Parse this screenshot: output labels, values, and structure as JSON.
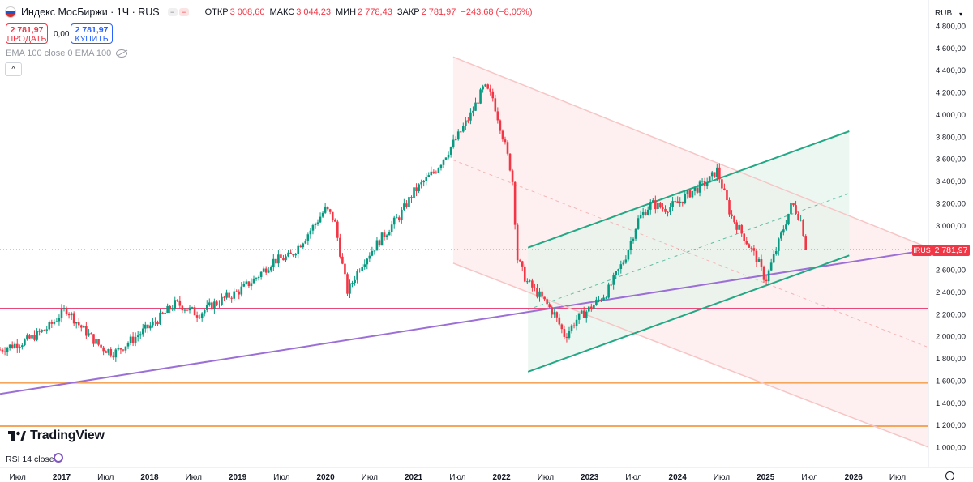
{
  "header": {
    "title": "Индекс МосБиржи · 1Ч · RUS",
    "toggle_a": "−",
    "toggle_b": "−",
    "ohlc": [
      {
        "k": "ОТКР",
        "v": "3 008,60"
      },
      {
        "k": "МАКС",
        "v": "3 044,23"
      },
      {
        "k": "МИН",
        "v": "2 778,43"
      },
      {
        "k": "ЗАКР",
        "v": "2 781,97"
      }
    ],
    "change": "−243,68 (−8,05%)"
  },
  "trade": {
    "sell_price": "2 781,97",
    "sell_label": "ПРОДАТЬ",
    "spread": "0,00",
    "buy_price": "2 781,97",
    "buy_label": "КУПИТЬ"
  },
  "indicator_label": "EMA 100 close 0 EMA 100",
  "collapse_icon": "^",
  "logo_text": "TradingView",
  "rsi_label": "RSI 14 close",
  "currency": "RUB",
  "price_tag": "2 781,97",
  "symbol_tag": "IRUS",
  "colors": {
    "up": "#089981",
    "down": "#f23645",
    "channel_pink": "#f7c5c5",
    "channel_green": "#22a884",
    "trend_purple": "#9c6fd6",
    "level_magenta": "#e8487a",
    "level_orange": "#f5a65b"
  },
  "chart_data": {
    "type": "candlestick",
    "y_axis": {
      "min": 1000,
      "max": 4800,
      "ticks": [
        1000,
        1200,
        1400,
        1600,
        1800,
        2000,
        2200,
        2400,
        2600,
        2800,
        3000,
        3200,
        3400,
        3600,
        3800,
        4000,
        4200,
        4400,
        4600,
        4800
      ],
      "tick_labels": [
        "1 000,00",
        "1 200,00",
        "1 400,00",
        "1 600,00",
        "1 800,00",
        "2 000,00",
        "2 200,00",
        "2 400,00",
        "2 600,00",
        "2 800,00",
        "3 000,00",
        "3 200,00",
        "3 400,00",
        "3 600,00",
        "3 800,00",
        "4 000,00",
        "4 200,00",
        "4 400,00",
        "4 600,00",
        "4 800,00"
      ]
    },
    "x_axis": {
      "range": [
        2016.3,
        2026.85
      ],
      "ticks": [
        {
          "t": 2016.5,
          "label": "Июл",
          "year": false
        },
        {
          "t": 2017.0,
          "label": "2017",
          "year": true
        },
        {
          "t": 2017.5,
          "label": "Июл",
          "year": false
        },
        {
          "t": 2018.0,
          "label": "2018",
          "year": true
        },
        {
          "t": 2018.5,
          "label": "Июл",
          "year": false
        },
        {
          "t": 2019.0,
          "label": "2019",
          "year": true
        },
        {
          "t": 2019.5,
          "label": "Июл",
          "year": false
        },
        {
          "t": 2020.0,
          "label": "2020",
          "year": true
        },
        {
          "t": 2020.5,
          "label": "Июл",
          "year": false
        },
        {
          "t": 2021.0,
          "label": "2021",
          "year": true
        },
        {
          "t": 2021.5,
          "label": "Июл",
          "year": false
        },
        {
          "t": 2022.0,
          "label": "2022",
          "year": true
        },
        {
          "t": 2022.5,
          "label": "Июл",
          "year": false
        },
        {
          "t": 2023.0,
          "label": "2023",
          "year": true
        },
        {
          "t": 2023.5,
          "label": "Июл",
          "year": false
        },
        {
          "t": 2024.0,
          "label": "2024",
          "year": true
        },
        {
          "t": 2024.5,
          "label": "Июл",
          "year": false
        },
        {
          "t": 2025.0,
          "label": "2025",
          "year": true
        },
        {
          "t": 2025.5,
          "label": "Июл",
          "year": false
        },
        {
          "t": 2026.0,
          "label": "2026",
          "year": true
        },
        {
          "t": 2026.5,
          "label": "Июл",
          "year": false
        }
      ]
    },
    "price_path": [
      [
        2016.3,
        1880
      ],
      [
        2016.6,
        1960
      ],
      [
        2016.85,
        2080
      ],
      [
        2017.05,
        2250
      ],
      [
        2017.2,
        2100
      ],
      [
        2017.45,
        1900
      ],
      [
        2017.6,
        1850
      ],
      [
        2017.85,
        2000
      ],
      [
        2018.05,
        2120
      ],
      [
        2018.3,
        2300
      ],
      [
        2018.55,
        2200
      ],
      [
        2018.75,
        2300
      ],
      [
        2019.0,
        2400
      ],
      [
        2019.2,
        2520
      ],
      [
        2019.4,
        2680
      ],
      [
        2019.6,
        2720
      ],
      [
        2019.85,
        2980
      ],
      [
        2020.0,
        3150
      ],
      [
        2020.1,
        3050
      ],
      [
        2020.2,
        2600
      ],
      [
        2020.25,
        2400
      ],
      [
        2020.4,
        2650
      ],
      [
        2020.6,
        2850
      ],
      [
        2020.85,
        3100
      ],
      [
        2021.0,
        3300
      ],
      [
        2021.25,
        3500
      ],
      [
        2021.5,
        3800
      ],
      [
        2021.65,
        4000
      ],
      [
        2021.8,
        4250
      ],
      [
        2021.9,
        4150
      ],
      [
        2022.0,
        3850
      ],
      [
        2022.12,
        3450
      ],
      [
        2022.18,
        2700
      ],
      [
        2022.28,
        2500
      ],
      [
        2022.45,
        2350
      ],
      [
        2022.6,
        2200
      ],
      [
        2022.72,
        2000
      ],
      [
        2022.85,
        2150
      ],
      [
        2023.0,
        2250
      ],
      [
        2023.2,
        2400
      ],
      [
        2023.4,
        2700
      ],
      [
        2023.55,
        3050
      ],
      [
        2023.7,
        3200
      ],
      [
        2023.85,
        3150
      ],
      [
        2024.0,
        3200
      ],
      [
        2024.15,
        3300
      ],
      [
        2024.35,
        3400
      ],
      [
        2024.45,
        3500
      ],
      [
        2024.6,
        3100
      ],
      [
        2024.75,
        2900
      ],
      [
        2024.9,
        2700
      ],
      [
        2025.0,
        2500
      ],
      [
        2025.15,
        2850
      ],
      [
        2025.3,
        3200
      ],
      [
        2025.4,
        3050
      ],
      [
        2025.47,
        2780
      ]
    ],
    "last": {
      "close": 2781.97
    },
    "drawings": [
      {
        "name": "regression-channel-upper",
        "kind": "line",
        "from": [
          2021.45,
          4520
        ],
        "to": [
          2026.85,
          2800
        ]
      },
      {
        "name": "regression-channel-lower",
        "kind": "line",
        "from": [
          2021.45,
          2660
        ],
        "to": [
          2026.85,
          1000
        ]
      },
      {
        "name": "ascending-channel-upper",
        "kind": "line",
        "from": [
          2022.3,
          2800
        ],
        "to": [
          2025.95,
          3850
        ]
      },
      {
        "name": "ascending-channel-lower",
        "kind": "line",
        "from": [
          2022.3,
          1680
        ],
        "to": [
          2025.95,
          2730
        ]
      },
      {
        "name": "long-trendline",
        "kind": "line",
        "from": [
          2016.3,
          1480
        ],
        "to": [
          2026.85,
          2780
        ]
      },
      {
        "name": "support-level-2250",
        "kind": "hline",
        "y": 2250
      },
      {
        "name": "support-level-1580",
        "kind": "hline",
        "y": 1580
      },
      {
        "name": "support-level-1190",
        "kind": "hline",
        "y": 1190
      }
    ]
  }
}
